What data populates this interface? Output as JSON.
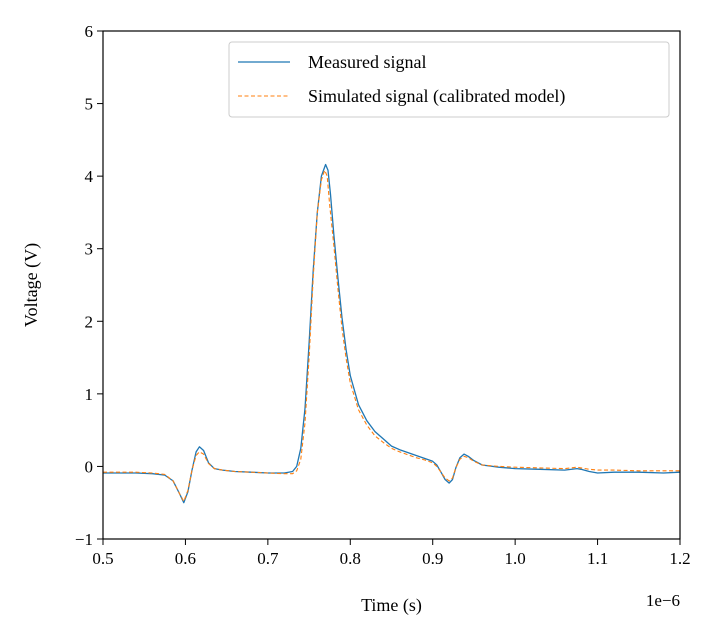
{
  "chart_data": {
    "type": "line",
    "title": "",
    "xlabel": "Time (s)",
    "ylabel": "Voltage (V)",
    "x_offset_label": "1e−6",
    "xlim": [
      0.5,
      1.2
    ],
    "ylim": [
      -1,
      6
    ],
    "x_ticks": [
      "0.5",
      "0.6",
      "0.7",
      "0.8",
      "0.9",
      "1.0",
      "1.1",
      "1.2"
    ],
    "y_ticks": [
      "−1",
      "0",
      "1",
      "2",
      "3",
      "4",
      "5",
      "6"
    ],
    "grid": false,
    "legend_position": "top-right",
    "series": [
      {
        "name": "Measured signal",
        "color": "#1f77b4",
        "style": "solid",
        "x": [
          0.5,
          0.52,
          0.54,
          0.56,
          0.575,
          0.585,
          0.593,
          0.598,
          0.603,
          0.608,
          0.613,
          0.617,
          0.622,
          0.628,
          0.635,
          0.645,
          0.66,
          0.68,
          0.7,
          0.72,
          0.73,
          0.735,
          0.74,
          0.745,
          0.75,
          0.755,
          0.76,
          0.765,
          0.77,
          0.773,
          0.776,
          0.78,
          0.785,
          0.79,
          0.795,
          0.8,
          0.81,
          0.82,
          0.83,
          0.84,
          0.85,
          0.86,
          0.87,
          0.88,
          0.89,
          0.9,
          0.905,
          0.91,
          0.915,
          0.92,
          0.924,
          0.928,
          0.933,
          0.938,
          0.943,
          0.95,
          0.96,
          0.98,
          1.0,
          1.03,
          1.06,
          1.075,
          1.08,
          1.09,
          1.1,
          1.12,
          1.15,
          1.18,
          1.2
        ],
        "values": [
          -0.09,
          -0.09,
          -0.09,
          -0.1,
          -0.12,
          -0.2,
          -0.38,
          -0.5,
          -0.35,
          -0.05,
          0.2,
          0.27,
          0.22,
          0.05,
          -0.03,
          -0.05,
          -0.07,
          -0.08,
          -0.09,
          -0.09,
          -0.07,
          0.0,
          0.25,
          0.8,
          1.7,
          2.7,
          3.5,
          4.0,
          4.16,
          4.08,
          3.75,
          3.2,
          2.6,
          2.05,
          1.6,
          1.25,
          0.85,
          0.63,
          0.48,
          0.38,
          0.28,
          0.23,
          0.19,
          0.15,
          0.11,
          0.07,
          0.02,
          -0.08,
          -0.18,
          -0.23,
          -0.18,
          -0.02,
          0.12,
          0.17,
          0.14,
          0.08,
          0.02,
          -0.01,
          -0.03,
          -0.04,
          -0.05,
          -0.03,
          -0.04,
          -0.07,
          -0.09,
          -0.08,
          -0.08,
          -0.09,
          -0.08
        ]
      },
      {
        "name": "Simulated signal (calibrated model)",
        "color": "#ff7f0e",
        "style": "dashed",
        "x": [
          0.5,
          0.52,
          0.54,
          0.56,
          0.575,
          0.585,
          0.593,
          0.598,
          0.603,
          0.608,
          0.613,
          0.617,
          0.622,
          0.628,
          0.635,
          0.645,
          0.66,
          0.68,
          0.7,
          0.72,
          0.73,
          0.735,
          0.74,
          0.745,
          0.75,
          0.755,
          0.76,
          0.765,
          0.769,
          0.772,
          0.775,
          0.78,
          0.785,
          0.79,
          0.795,
          0.8,
          0.81,
          0.82,
          0.83,
          0.84,
          0.85,
          0.86,
          0.87,
          0.88,
          0.89,
          0.9,
          0.905,
          0.91,
          0.915,
          0.92,
          0.924,
          0.928,
          0.933,
          0.938,
          0.943,
          0.95,
          0.96,
          0.98,
          1.0,
          1.03,
          1.06,
          1.075,
          1.08,
          1.09,
          1.1,
          1.12,
          1.15,
          1.18,
          1.2
        ],
        "values": [
          -0.08,
          -0.08,
          -0.08,
          -0.09,
          -0.11,
          -0.2,
          -0.38,
          -0.48,
          -0.33,
          -0.05,
          0.15,
          0.2,
          0.17,
          0.04,
          -0.03,
          -0.05,
          -0.07,
          -0.08,
          -0.09,
          -0.1,
          -0.1,
          -0.06,
          0.1,
          0.6,
          1.5,
          2.6,
          3.5,
          3.95,
          4.08,
          4.0,
          3.6,
          3.05,
          2.45,
          1.9,
          1.48,
          1.15,
          0.78,
          0.57,
          0.42,
          0.33,
          0.25,
          0.2,
          0.16,
          0.12,
          0.09,
          0.05,
          0.0,
          -0.08,
          -0.16,
          -0.2,
          -0.16,
          -0.02,
          0.1,
          0.14,
          0.12,
          0.07,
          0.02,
          0.0,
          -0.01,
          -0.02,
          -0.03,
          -0.01,
          -0.02,
          -0.04,
          -0.05,
          -0.05,
          -0.06,
          -0.06,
          -0.06
        ]
      }
    ]
  }
}
